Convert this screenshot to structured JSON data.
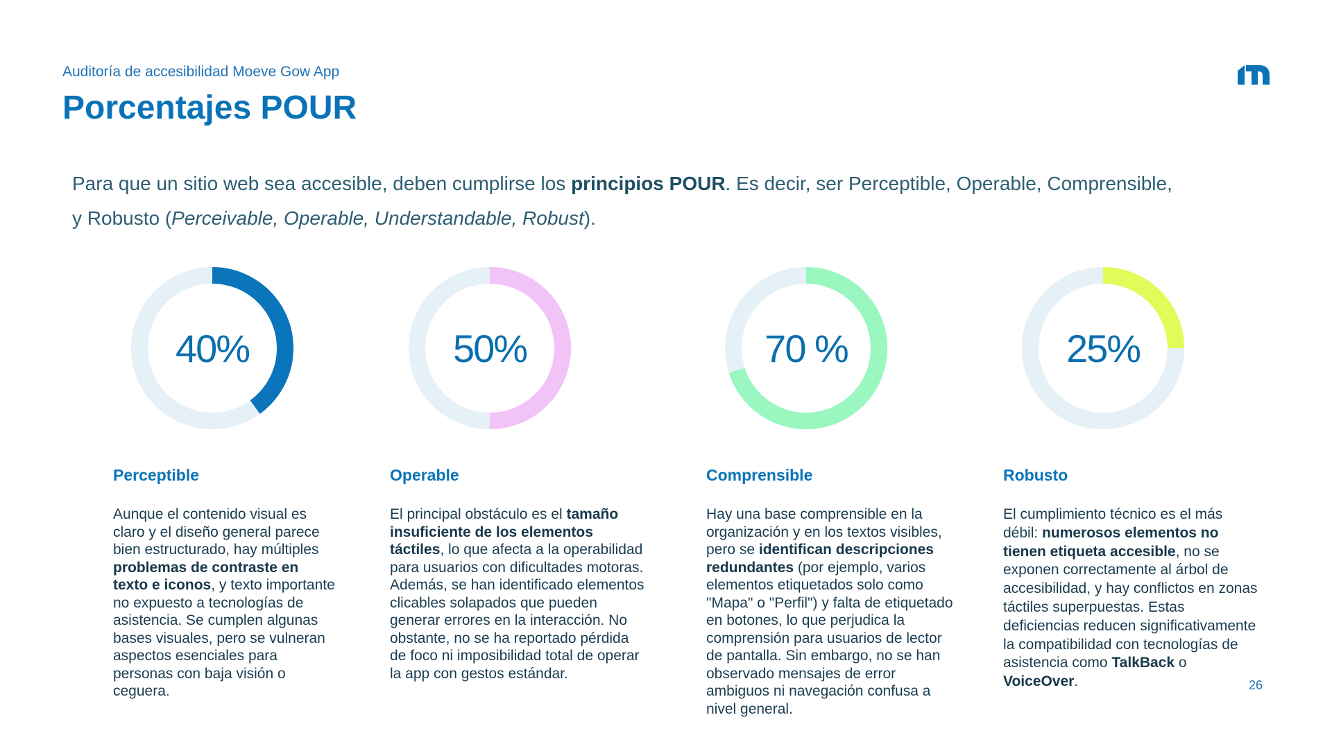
{
  "header": {
    "subtitle": "Auditoría de accesibilidad Moeve Gow App",
    "title": "Porcentajes POUR"
  },
  "intro": {
    "t1": "Para que un sitio web sea accesible, deben cumplirse los ",
    "b1": "principios POUR",
    "t2": ". Es decir, ser Perceptible, Operable, Comprensible, y Robusto (",
    "i1": "Perceivable, Operable, Understandable, Robust",
    "t3": ")."
  },
  "colors": {
    "track": "#e6f0f7",
    "perceptible": "#0a75ba",
    "operable": "#f2c3f6",
    "comprensible": "#99f7bf",
    "robusto": "#e1fb58"
  },
  "donuts": [
    {
      "label": "40%",
      "value": 0.4
    },
    {
      "label": "50%",
      "value": 0.5
    },
    {
      "label": "70 %",
      "value": 0.7
    },
    {
      "label": "25%",
      "value": 0.25
    }
  ],
  "columns": {
    "perceptible": {
      "heading": "Perceptible",
      "p1": "Aunque el contenido visual es claro y el diseño general parece bien estructurado, hay múltiples ",
      "b1": "problemas de contraste en texto e iconos",
      "p2": ", y texto importante no expuesto a tecnologías de asistencia. Se cumplen algunas bases visuales, pero se vulneran aspectos esenciales para personas con baja visión o ceguera."
    },
    "operable": {
      "heading": "Operable",
      "p1": "El principal obstáculo es el ",
      "b1": "tamaño insuficiente de los elementos táctiles",
      "p2": ", lo que afecta a la operabilidad para usuarios con dificultades motoras. Además, se han identificado elementos clicables solapados que pueden generar errores en la interacción. No obstante, no se ha reportado pérdida de foco ni imposibilidad total de operar la app con gestos estándar."
    },
    "comprensible": {
      "heading": "Comprensible",
      "p1": "Hay una base comprensible en la organización y en los textos visibles, pero se ",
      "b1": "identifican descripciones redundantes",
      "p2": " (por ejemplo, varios elementos etiquetados solo como \"Mapa\" o \"Perfil\") y falta de etiquetado en botones, lo que perjudica la comprensión para usuarios de lector de pantalla. Sin embargo, no se han observado mensajes de error ambiguos ni navegación confusa a nivel general."
    },
    "robusto": {
      "heading": "Robusto",
      "p1": "El cumplimiento técnico es el más débil: ",
      "b1": "numerosos elementos no tienen etiqueta accesible",
      "p2": ", no se exponen correctamente al árbol de accesibilidad, y hay conflictos en zonas táctiles superpuestas. Estas deficiencias reducen significativamente la compatibilidad con tecnologías de asistencia como ",
      "b2": "TalkBack",
      "p3": " o ",
      "b3": "VoiceOver",
      "p4": "."
    }
  },
  "page_number": "26"
}
